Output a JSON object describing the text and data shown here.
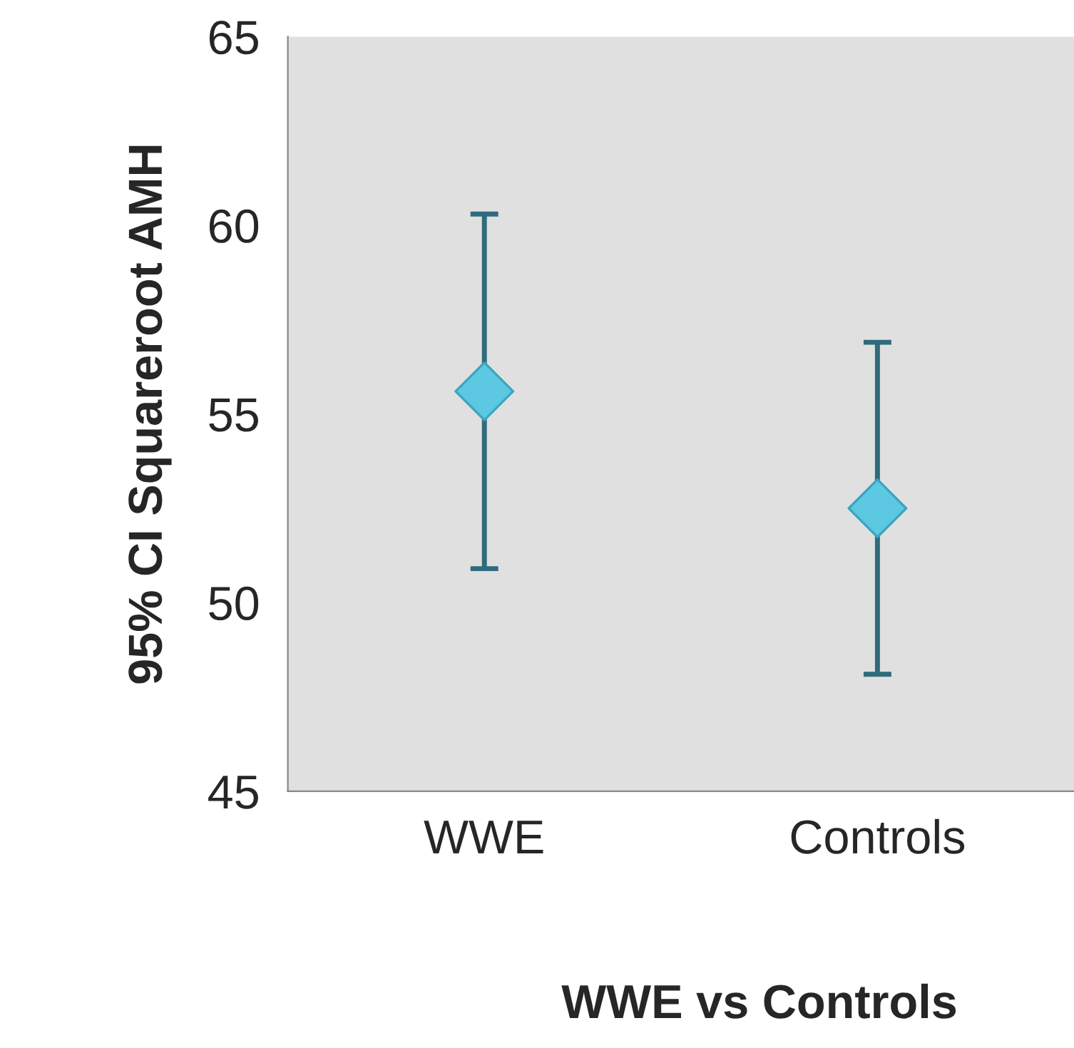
{
  "chart_data": {
    "type": "scatter",
    "xlabel": "WWE vs Controls",
    "ylabel": "95% CI Squareroot AMH",
    "categories": [
      "WWE",
      "Controls"
    ],
    "series": [
      {
        "color": "#5cc8e2",
        "values": [
          55.6,
          52.5
        ],
        "errors": [
          4.7,
          4.4
        ]
      }
    ],
    "ylim": [
      45,
      65
    ],
    "yticks": [
      45,
      50,
      55,
      60,
      65
    ],
    "marker": "diamond",
    "grid": false,
    "legend": false
  }
}
